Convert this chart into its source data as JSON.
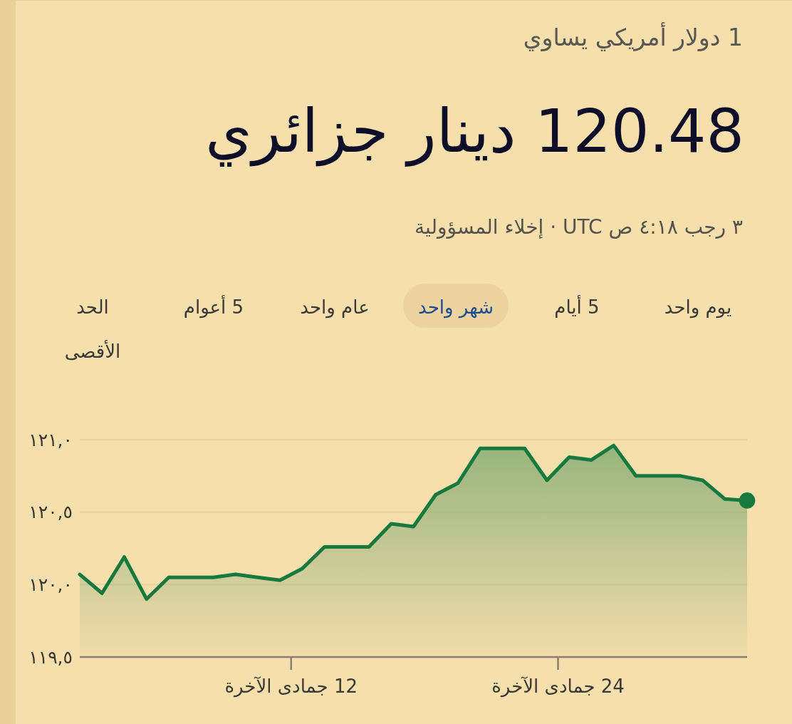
{
  "chart_data": {
    "type": "area",
    "title": "120.48 دينار جزائري",
    "subtitle": "1 دولار أمريكي يساوي",
    "annotations": [
      "٣ رجب ٤:١٨ ص UTC · إخلاء المسؤولية",
      "يوم واحد",
      "5 أيام",
      "شهر واحد",
      "عام واحد",
      "5 أعوام",
      "الحد الأقصى"
    ],
    "x": [
      2.5,
      3.5,
      4.5,
      5.5,
      6.5,
      7.5,
      8.5,
      9.5,
      10.5,
      11.5,
      12.5,
      13.5,
      14.5,
      15.5,
      16.5,
      17.5,
      18.5,
      19.5,
      20.5,
      21.5,
      22.5,
      23.5,
      24.5,
      25.5,
      26.5,
      27.5,
      28.5,
      29.5,
      30.5,
      31.5,
      32.5
    ],
    "series": [
      {
        "color": "#17793d",
        "values": [
          120.07,
          119.94,
          120.19,
          119.9,
          120.05,
          120.05,
          120.05,
          120.07,
          120.05,
          120.03,
          120.11,
          120.26,
          120.26,
          120.26,
          120.42,
          120.4,
          120.62,
          120.7,
          120.94,
          120.94,
          120.94,
          120.72,
          120.88,
          120.86,
          120.96,
          120.75,
          120.75,
          120.75,
          120.72,
          120.59,
          120.58
        ]
      },
      {
        "type": "scatter",
        "color": "#17793d",
        "marker": "circle",
        "x": [
          32.5
        ],
        "values": [
          120.58
        ]
      }
    ],
    "xlim": [
      2.5,
      32.5
    ],
    "xticks": [
      {
        "value": 12,
        "label": "12 جمادى الآخرة"
      },
      {
        "value": 24,
        "label": "24 جمادى الآخرة"
      }
    ],
    "ylim": [
      119.5,
      121
    ],
    "yticks": [
      {
        "value": 119.5,
        "label": "١١٩,٥"
      },
      {
        "value": 120,
        "label": "١٢٠,٠"
      },
      {
        "value": 120.5,
        "label": "١٢٠,٥"
      },
      {
        "value": 121,
        "label": "١٢١,٠"
      }
    ],
    "grid": "y"
  }
}
